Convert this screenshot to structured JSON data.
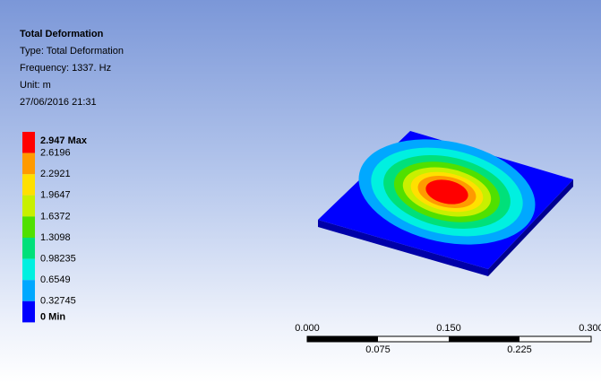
{
  "header": {
    "title": "Total Deformation",
    "lines": [
      "Type: Total Deformation",
      "Frequency: 1337. Hz",
      "Unit: m",
      "27/06/2016 21:31"
    ]
  },
  "legend": {
    "labels": [
      "2.947 Max",
      "2.6196",
      "2.2921",
      "1.9647",
      "1.6372",
      "1.3098",
      "0.98235",
      "0.6549",
      "0.32745",
      "0 Min"
    ],
    "colors": [
      "#ff0000",
      "#ff9a00",
      "#ffe000",
      "#c8f000",
      "#50e000",
      "#00e07a",
      "#00f0e0",
      "#00a8ff",
      "#0000ff"
    ]
  },
  "scale_bar": {
    "top_labels": [
      "0.000",
      "0.150",
      "0.300"
    ],
    "bottom_labels": [
      "0.075",
      "0.225"
    ]
  }
}
